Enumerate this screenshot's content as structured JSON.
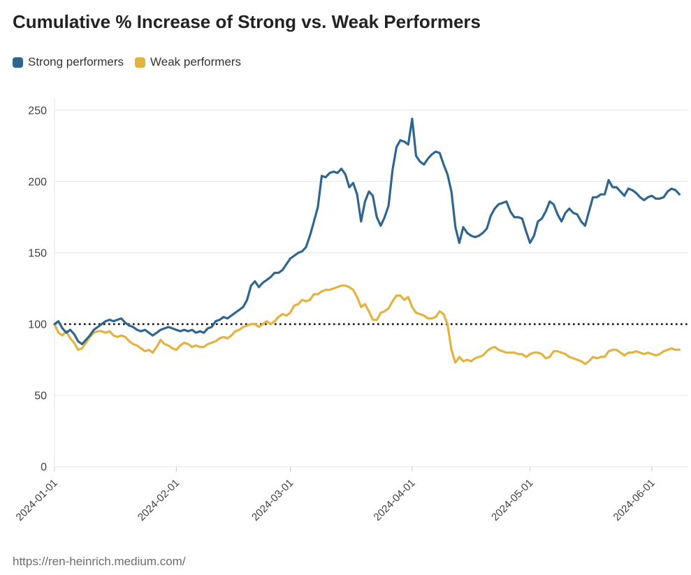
{
  "title": "Cumulative % Increase of Strong vs. Weak Performers",
  "source_url": "https://ren-heinrich.medium.com/",
  "legend": [
    {
      "label": "Strong performers",
      "color": "#2f6591"
    },
    {
      "label": "Weak performers",
      "color": "#e3b33d"
    }
  ],
  "colors": {
    "strong_line": "#2f6591",
    "weak_line": "#e3b33d",
    "gridline": "#e4e4e4",
    "tick": "#c9c9c9",
    "baseline_dotted": "#141414",
    "axis_text": "#3f3f3f"
  },
  "chart_data": {
    "type": "line",
    "title": "Cumulative % Increase of Strong vs. Weak Performers",
    "xlabel": "",
    "ylabel": "",
    "start_date": "2024-01-01",
    "interval_days": 1,
    "x_tick_labels": [
      "2024-01-01",
      "2024-02-01",
      "2024-03-01",
      "2024-04-01",
      "2024-05-01",
      "2024-06-01"
    ],
    "y_ticks": [
      0,
      50,
      100,
      150,
      200,
      250
    ],
    "ylim": [
      0,
      260
    ],
    "baseline": 100,
    "grid": "horizontal",
    "legend_position": "top-left",
    "series": [
      {
        "name": "Strong performers",
        "color": "#2f6591",
        "values": [
          100,
          102,
          97,
          94,
          96,
          93,
          88,
          86,
          89,
          92,
          96,
          98,
          100,
          102,
          103,
          102,
          103,
          104,
          101,
          99,
          98,
          96,
          95,
          96,
          94,
          92,
          94,
          96,
          97,
          98,
          97,
          96,
          95,
          96,
          95,
          96,
          94,
          95,
          94,
          97,
          98,
          102,
          103,
          105,
          104,
          106,
          108,
          110,
          112,
          117,
          127,
          130,
          126,
          129,
          131,
          133,
          136,
          136,
          138,
          142,
          146,
          148,
          150,
          151,
          154,
          162,
          172,
          182,
          204,
          203,
          206,
          207,
          206,
          209,
          205,
          196,
          199,
          191,
          172,
          186,
          193,
          190,
          175,
          169,
          175,
          183,
          208,
          224,
          229,
          228,
          226,
          244,
          218,
          214,
          212,
          216,
          219,
          221,
          220,
          212,
          205,
          193,
          168,
          157,
          168,
          164,
          162,
          161,
          162,
          164,
          167,
          176,
          181,
          184,
          185,
          186,
          179,
          175,
          175,
          174,
          165,
          157,
          162,
          172,
          174,
          179,
          186,
          184,
          177,
          172,
          178,
          181,
          178,
          177,
          172,
          169,
          179,
          189,
          189,
          191,
          191,
          201,
          196,
          196,
          193,
          190,
          195,
          194,
          192,
          189,
          187,
          189,
          190,
          188,
          188,
          189,
          193,
          195,
          194,
          191
        ]
      },
      {
        "name": "Weak performers",
        "color": "#e3b33d",
        "values": [
          100,
          94,
          92,
          95,
          90,
          87,
          82,
          83,
          87,
          91,
          94,
          95,
          95,
          94,
          95,
          92,
          91,
          92,
          91,
          88,
          86,
          85,
          83,
          81,
          82,
          80,
          84,
          89,
          86,
          85,
          83,
          82,
          85,
          87,
          86,
          84,
          85,
          84,
          84,
          86,
          87,
          88,
          90,
          91,
          90,
          92,
          95,
          96,
          98,
          99,
          100,
          100,
          98,
          100,
          102,
          100,
          102,
          105,
          107,
          106,
          108,
          113,
          114,
          117,
          116,
          117,
          121,
          121,
          123,
          124,
          124,
          125,
          126,
          127,
          127,
          126,
          124,
          119,
          112,
          114,
          109,
          103,
          103,
          108,
          109,
          111,
          116,
          120,
          120,
          117,
          119,
          112,
          108,
          107,
          106,
          104,
          104,
          105,
          109,
          107,
          100,
          82,
          73,
          77,
          74,
          75,
          74,
          76,
          77,
          78,
          81,
          83,
          84,
          82,
          81,
          80,
          80,
          80,
          79,
          79,
          77,
          79,
          80,
          80,
          79,
          76,
          77,
          81,
          81,
          80,
          79,
          77,
          76,
          75,
          74,
          72,
          74,
          77,
          76,
          77,
          77,
          81,
          82,
          82,
          80,
          78,
          80,
          80,
          81,
          80,
          79,
          80,
          79,
          78,
          79,
          81,
          82,
          83,
          82,
          82
        ]
      }
    ]
  }
}
